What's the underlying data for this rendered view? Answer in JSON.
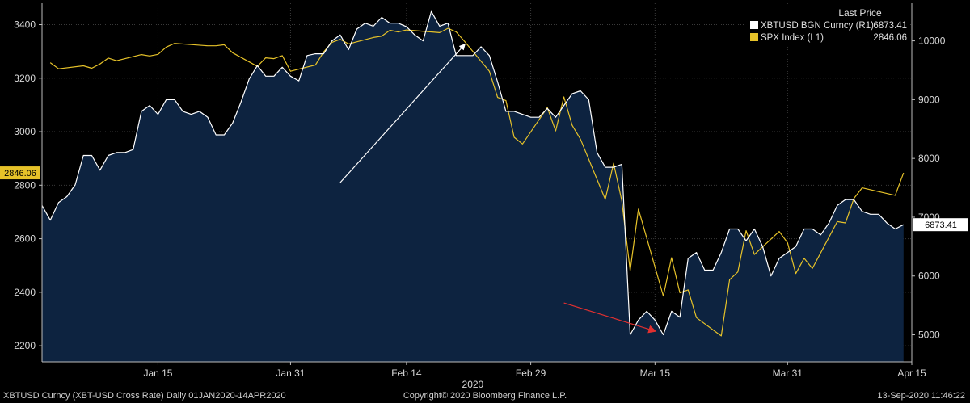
{
  "chart_data": {
    "type": "line",
    "legend": {
      "title": "Last Price",
      "placement": "top-right",
      "entries": [
        {
          "label": "XBTUSD BGN Curncy  (R1)",
          "value": "6873.41",
          "color": "#ffffff"
        },
        {
          "label": "SPX Index  (L1)",
          "value": "2846.06",
          "color": "#e6c229"
        }
      ]
    },
    "x_axis": {
      "ticks": [
        "Jan 15",
        "Jan 31",
        "Feb 14",
        "Feb 29",
        "Mar 15",
        "Mar 31",
        "Apr 15"
      ],
      "tick_dates": [
        "2020-01-15",
        "2020-01-31",
        "2020-02-14",
        "2020-02-29",
        "2020-03-15",
        "2020-03-31",
        "2020-04-15"
      ],
      "year_label": "2020",
      "range": [
        "2020-01-01",
        "2020-04-15"
      ]
    },
    "left_axis": {
      "ticks": [
        2200,
        2400,
        2600,
        2800,
        3000,
        3200,
        3400
      ],
      "range": [
        2140,
        3480
      ],
      "last_value_label": "2846.06"
    },
    "right_axis": {
      "ticks": [
        5000,
        6000,
        7000,
        8000,
        9000,
        10000
      ],
      "range": [
        4540,
        10640
      ],
      "last_value_label": "6873.41"
    },
    "series": [
      {
        "name": "XBTUSD BGN Curncy",
        "axis": "right",
        "color": "#ffffff",
        "fill": "#0d2340",
        "x": [
          "2020-01-01",
          "2020-01-02",
          "2020-01-03",
          "2020-01-04",
          "2020-01-05",
          "2020-01-06",
          "2020-01-07",
          "2020-01-08",
          "2020-01-09",
          "2020-01-10",
          "2020-01-11",
          "2020-01-12",
          "2020-01-13",
          "2020-01-14",
          "2020-01-15",
          "2020-01-16",
          "2020-01-17",
          "2020-01-18",
          "2020-01-19",
          "2020-01-20",
          "2020-01-21",
          "2020-01-22",
          "2020-01-23",
          "2020-01-24",
          "2020-01-25",
          "2020-01-26",
          "2020-01-27",
          "2020-01-28",
          "2020-01-29",
          "2020-01-30",
          "2020-01-31",
          "2020-02-01",
          "2020-02-02",
          "2020-02-03",
          "2020-02-04",
          "2020-02-05",
          "2020-02-06",
          "2020-02-07",
          "2020-02-08",
          "2020-02-09",
          "2020-02-10",
          "2020-02-11",
          "2020-02-12",
          "2020-02-13",
          "2020-02-14",
          "2020-02-15",
          "2020-02-16",
          "2020-02-17",
          "2020-02-18",
          "2020-02-19",
          "2020-02-20",
          "2020-02-21",
          "2020-02-22",
          "2020-02-23",
          "2020-02-24",
          "2020-02-25",
          "2020-02-26",
          "2020-02-27",
          "2020-02-28",
          "2020-02-29",
          "2020-03-01",
          "2020-03-02",
          "2020-03-03",
          "2020-03-04",
          "2020-03-05",
          "2020-03-06",
          "2020-03-07",
          "2020-03-08",
          "2020-03-09",
          "2020-03-10",
          "2020-03-11",
          "2020-03-12",
          "2020-03-13",
          "2020-03-14",
          "2020-03-15",
          "2020-03-16",
          "2020-03-17",
          "2020-03-18",
          "2020-03-19",
          "2020-03-20",
          "2020-03-21",
          "2020-03-22",
          "2020-03-23",
          "2020-03-24",
          "2020-03-25",
          "2020-03-26",
          "2020-03-27",
          "2020-03-28",
          "2020-03-29",
          "2020-03-30",
          "2020-03-31",
          "2020-04-01",
          "2020-04-02",
          "2020-04-03",
          "2020-04-04",
          "2020-04-05",
          "2020-04-06",
          "2020-04-07",
          "2020-04-08",
          "2020-04-09",
          "2020-04-10",
          "2020-04-11",
          "2020-04-12",
          "2020-04-13",
          "2020-04-14"
        ],
        "values": [
          7200,
          6950,
          7250,
          7350,
          7550,
          8050,
          8050,
          7800,
          8050,
          8100,
          8100,
          8150,
          8800,
          8900,
          8750,
          9000,
          9000,
          8800,
          8750,
          8800,
          8700,
          8400,
          8400,
          8600,
          8950,
          9350,
          9580,
          9400,
          9400,
          9550,
          9400,
          9320,
          9750,
          9780,
          9780,
          10000,
          10100,
          9850,
          10200,
          10300,
          10250,
          10400,
          10300,
          10300,
          10240,
          10100,
          10000,
          10500,
          10250,
          10300,
          9750,
          9750,
          9750,
          9900,
          9750,
          9300,
          8800,
          8800,
          8750,
          8700,
          8700,
          8850,
          8700,
          8900,
          9100,
          9150,
          9000,
          8100,
          7850,
          7850,
          7900,
          5000,
          5250,
          5400,
          5250,
          5000,
          5400,
          5300,
          6300,
          6400,
          6100,
          6100,
          6400,
          6800,
          6800,
          6600,
          6800,
          6500,
          6000,
          6300,
          6400,
          6500,
          6800,
          6800,
          6700,
          6900,
          7200,
          7300,
          7300,
          7100,
          7050,
          7050,
          6900,
          6800,
          6873
        ]
      },
      {
        "name": "SPX Index",
        "axis": "left",
        "color": "#e6c229",
        "x": [
          "2020-01-02",
          "2020-01-03",
          "2020-01-06",
          "2020-01-07",
          "2020-01-08",
          "2020-01-09",
          "2020-01-10",
          "2020-01-13",
          "2020-01-14",
          "2020-01-15",
          "2020-01-16",
          "2020-01-17",
          "2020-01-21",
          "2020-01-22",
          "2020-01-23",
          "2020-01-24",
          "2020-01-27",
          "2020-01-28",
          "2020-01-29",
          "2020-01-30",
          "2020-01-31",
          "2020-02-03",
          "2020-02-04",
          "2020-02-05",
          "2020-02-06",
          "2020-02-07",
          "2020-02-10",
          "2020-02-11",
          "2020-02-12",
          "2020-02-13",
          "2020-02-14",
          "2020-02-18",
          "2020-02-19",
          "2020-02-20",
          "2020-02-21",
          "2020-02-24",
          "2020-02-25",
          "2020-02-26",
          "2020-02-27",
          "2020-02-28",
          "2020-03-02",
          "2020-03-03",
          "2020-03-04",
          "2020-03-05",
          "2020-03-06",
          "2020-03-09",
          "2020-03-10",
          "2020-03-11",
          "2020-03-12",
          "2020-03-13",
          "2020-03-16",
          "2020-03-17",
          "2020-03-18",
          "2020-03-19",
          "2020-03-20",
          "2020-03-23",
          "2020-03-24",
          "2020-03-25",
          "2020-03-26",
          "2020-03-27",
          "2020-03-30",
          "2020-03-31",
          "2020-04-01",
          "2020-04-02",
          "2020-04-03",
          "2020-04-06",
          "2020-04-07",
          "2020-04-08",
          "2020-04-09",
          "2020-04-13",
          "2020-04-14"
        ],
        "values": [
          3258,
          3235,
          3246,
          3237,
          3253,
          3275,
          3265,
          3288,
          3283,
          3289,
          3316,
          3330,
          3321,
          3321,
          3325,
          3295,
          3244,
          3276,
          3273,
          3284,
          3226,
          3249,
          3298,
          3334,
          3345,
          3328,
          3352,
          3357,
          3379,
          3373,
          3380,
          3370,
          3386,
          3373,
          3338,
          3226,
          3128,
          3116,
          2979,
          2954,
          3090,
          3003,
          3130,
          3024,
          2972,
          2747,
          2882,
          2741,
          2481,
          2711,
          2386,
          2529,
          2398,
          2409,
          2305,
          2237,
          2447,
          2476,
          2630,
          2541,
          2627,
          2585,
          2470,
          2527,
          2489,
          2664,
          2659,
          2750,
          2790,
          2762,
          2846
        ]
      }
    ],
    "annotations": [
      {
        "type": "arrow",
        "color": "#ffffff",
        "from": {
          "x": "2020-02-06",
          "y": 2810
        },
        "to": {
          "x": "2020-02-21",
          "y": 3325
        }
      },
      {
        "type": "arrow",
        "color": "#e03030",
        "from": {
          "x": "2020-03-04",
          "y": 2360
        },
        "to": {
          "x": "2020-03-15",
          "y": 2255
        }
      }
    ]
  },
  "legend_box": {
    "title": "Last Price"
  },
  "footer": {
    "left": "XBTUSD Curncy (XBT-USD Cross Rate)  Daily 01JAN2020-14APR2020",
    "center": "Copyright© 2020 Bloomberg Finance L.P.",
    "right": "13-Sep-2020 11:46:22"
  }
}
